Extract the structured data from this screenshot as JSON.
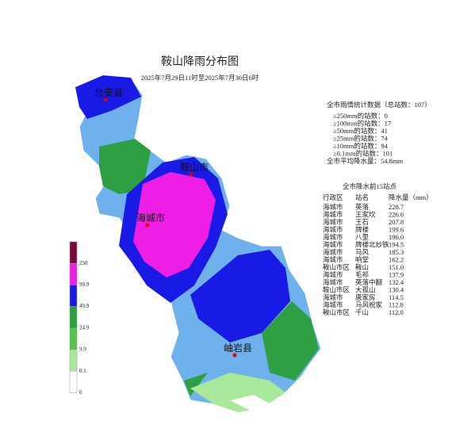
{
  "header": {
    "title": "鞍山降雨分布图",
    "subtitle": "2025年7月29日11时至2025年7月30日6时"
  },
  "stats": {
    "heading": "全市雨情统计数据（总站数：107）",
    "lines": [
      "≥250mm的站数：0",
      "≥100mm的站数：17",
      "≥50mm的站数：41",
      "≥25mm的站数：74",
      "≥10mm的站数：94",
      "≥0.1mm的站数：101"
    ],
    "average": "全市平均降水量：54.8mm"
  },
  "table": {
    "heading": "全市降水前15站点",
    "columns": [
      "行政区",
      "站名",
      "降水量（mm）"
    ],
    "rows": [
      [
        "海城市",
        "英落",
        "228.7"
      ],
      [
        "海城市",
        "王家坎",
        "226.6"
      ],
      [
        "海城市",
        "王石",
        "207.8"
      ],
      [
        "海城市",
        "牌楼",
        "199.6"
      ],
      [
        "海城市",
        "八里",
        "196.0"
      ],
      [
        "海城市",
        "牌楼北炒铁",
        "194.5"
      ],
      [
        "海城市",
        "马风",
        "185.3"
      ],
      [
        "海城市",
        "响堂",
        "162.2"
      ],
      [
        "鞍山市区",
        "鞍山",
        "151.0"
      ],
      [
        "海城市",
        "毛祁",
        "137.9"
      ],
      [
        "海城市",
        "英落中翻",
        "132.4"
      ],
      [
        "鞍山市区",
        "大孤山",
        "130.4"
      ],
      [
        "海城市",
        "唐家房",
        "114.5"
      ],
      [
        "海城市",
        "马风祝家",
        "112.8"
      ],
      [
        "鞍山市区",
        "千山",
        "112.0"
      ]
    ]
  },
  "legend": {
    "labels": [
      "250",
      "99.9",
      "49.9",
      "24.9",
      "9.9",
      "0.1",
      "0"
    ]
  },
  "regions": [
    {
      "label": "台安县"
    },
    {
      "label": "鞍山市"
    },
    {
      "label": "海城市"
    },
    {
      "label": "岫岩县"
    }
  ]
}
